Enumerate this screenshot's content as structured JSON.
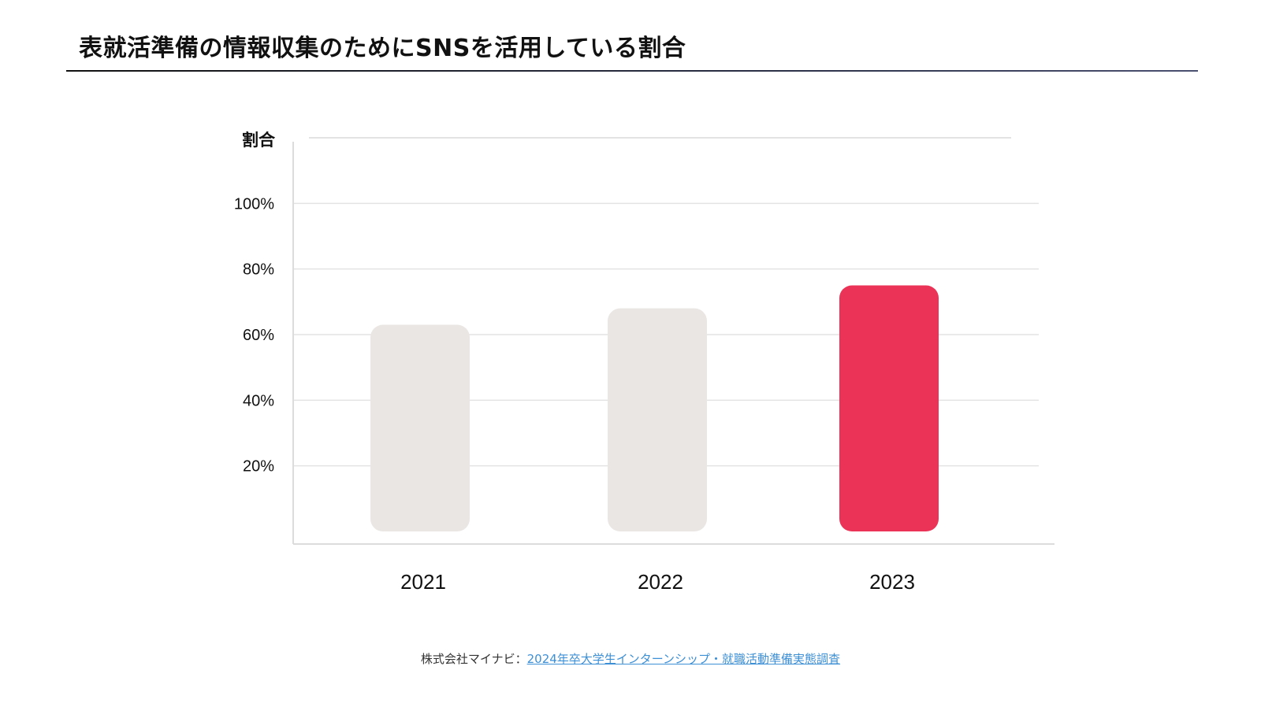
{
  "title": "表就活準備の情報収集のためにSNSを活用している割合",
  "source": {
    "prefix": "株式会社マイナビ：",
    "link_text": "2024年卒大学生インターンシップ・就職活動準備実態調査"
  },
  "colors": {
    "bar_default": "#e9e6e3",
    "bar_highlight": "#ea3356",
    "grid": "#e3e3e3",
    "axis": "#dcdcdc"
  },
  "chart_data": {
    "type": "bar",
    "ylabel": "割合",
    "xlabel": "",
    "categories": [
      "2021",
      "2022",
      "2023"
    ],
    "values": [
      63,
      68,
      75
    ],
    "highlight_index": 2,
    "ylim": [
      0,
      120
    ],
    "yticks": [
      20,
      40,
      60,
      80,
      100
    ],
    "ytick_labels": [
      "20%",
      "40%",
      "60%",
      "80%",
      "100%"
    ],
    "grid": true,
    "legend": "none"
  }
}
